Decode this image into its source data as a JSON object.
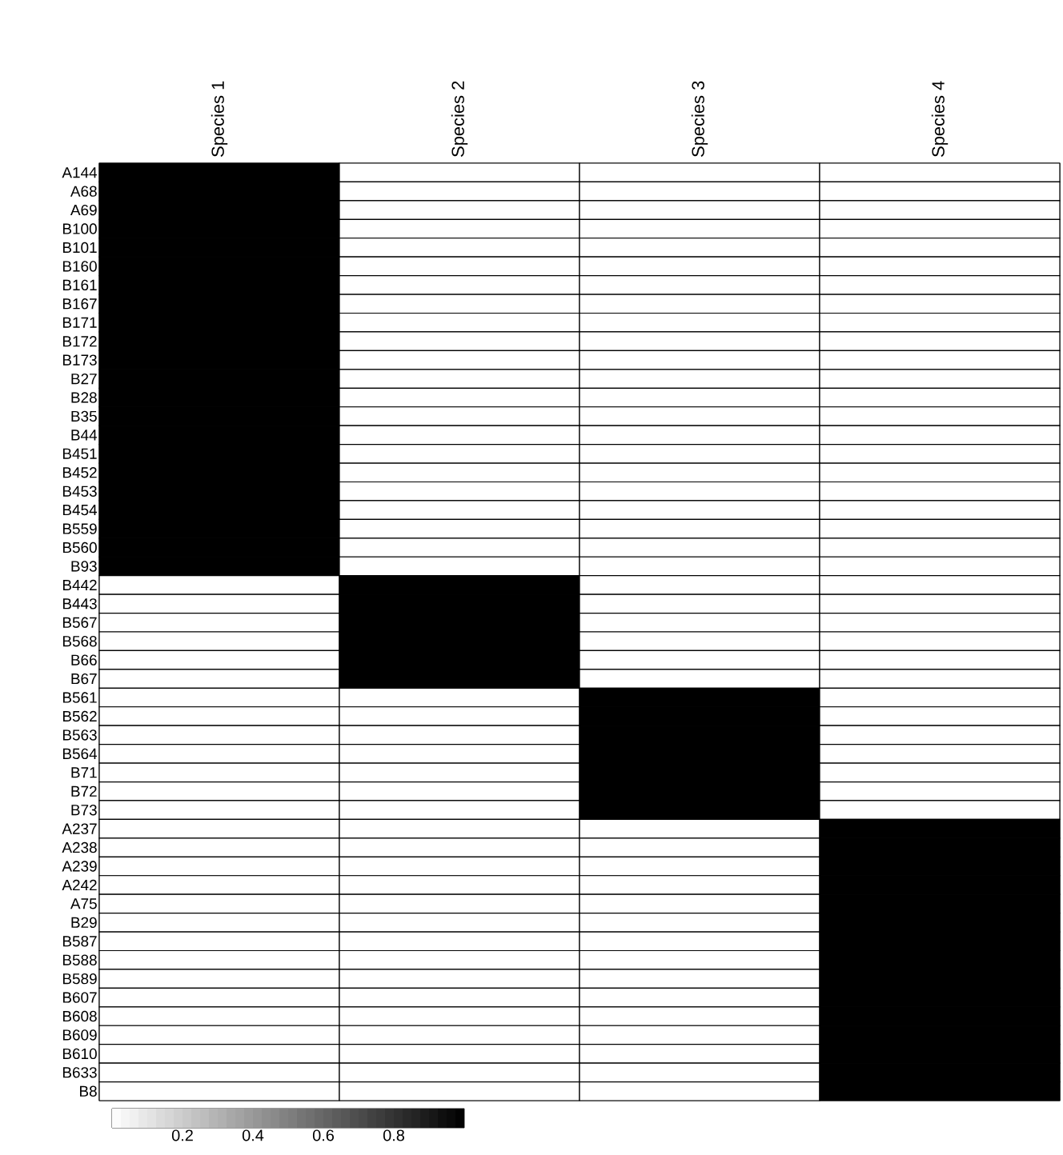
{
  "chart_data": {
    "type": "heatmap",
    "categories": [
      "Species 1",
      "Species 2",
      "Species 3",
      "Species 4"
    ],
    "y_categories": [
      "A144",
      "A68",
      "A69",
      "B100",
      "B101",
      "B160",
      "B161",
      "B167",
      "B171",
      "B172",
      "B173",
      "B27",
      "B28",
      "B35",
      "B44",
      "B451",
      "B452",
      "B453",
      "B454",
      "B559",
      "B560",
      "B93",
      "B442",
      "B443",
      "B567",
      "B568",
      "B66",
      "B67",
      "B561",
      "B562",
      "B563",
      "B564",
      "B71",
      "B72",
      "B73",
      "A237",
      "A238",
      "A239",
      "A242",
      "A75",
      "B29",
      "B587",
      "B588",
      "B589",
      "B607",
      "B608",
      "B609",
      "B610",
      "B633",
      "B8"
    ],
    "cells": [
      [
        1,
        0,
        0,
        0
      ],
      [
        1,
        0,
        0,
        0
      ],
      [
        1,
        0,
        0,
        0
      ],
      [
        1,
        0,
        0,
        0
      ],
      [
        1,
        0,
        0,
        0
      ],
      [
        1,
        0,
        0,
        0
      ],
      [
        1,
        0,
        0,
        0
      ],
      [
        1,
        0,
        0,
        0
      ],
      [
        1,
        0,
        0,
        0
      ],
      [
        1,
        0,
        0,
        0
      ],
      [
        1,
        0,
        0,
        0
      ],
      [
        1,
        0,
        0,
        0
      ],
      [
        1,
        0,
        0,
        0
      ],
      [
        1,
        0,
        0,
        0
      ],
      [
        1,
        0,
        0,
        0
      ],
      [
        1,
        0,
        0,
        0
      ],
      [
        1,
        0,
        0,
        0
      ],
      [
        1,
        0,
        0,
        0
      ],
      [
        1,
        0,
        0,
        0
      ],
      [
        1,
        0,
        0,
        0
      ],
      [
        1,
        0,
        0,
        0
      ],
      [
        1,
        0,
        0,
        0
      ],
      [
        0,
        1,
        0,
        0
      ],
      [
        0,
        1,
        0,
        0
      ],
      [
        0,
        1,
        0,
        0
      ],
      [
        0,
        1,
        0,
        0
      ],
      [
        0,
        1,
        0,
        0
      ],
      [
        0,
        1,
        0,
        0
      ],
      [
        0,
        0,
        1,
        0
      ],
      [
        0,
        0,
        1,
        0
      ],
      [
        0,
        0,
        1,
        0
      ],
      [
        0,
        0,
        1,
        0
      ],
      [
        0,
        0,
        1,
        0
      ],
      [
        0,
        0,
        1,
        0
      ],
      [
        0,
        0,
        1,
        0
      ],
      [
        0,
        0,
        0,
        1
      ],
      [
        0,
        0,
        0,
        1
      ],
      [
        0,
        0,
        0,
        1
      ],
      [
        0,
        0,
        0,
        1
      ],
      [
        0,
        0,
        0,
        1
      ],
      [
        0,
        0,
        0,
        1
      ],
      [
        0,
        0,
        0,
        1
      ],
      [
        0,
        0,
        0,
        1
      ],
      [
        0,
        0,
        0,
        1
      ],
      [
        0,
        0,
        0,
        1
      ],
      [
        0,
        0,
        0,
        1
      ],
      [
        0,
        0,
        0,
        1
      ],
      [
        0,
        0,
        0,
        1
      ],
      [
        0,
        0,
        0,
        1
      ],
      [
        0,
        0,
        0,
        1
      ]
    ],
    "clim": [
      0,
      1
    ],
    "cticks": [
      0.2,
      0.4,
      0.6,
      0.8
    ]
  }
}
